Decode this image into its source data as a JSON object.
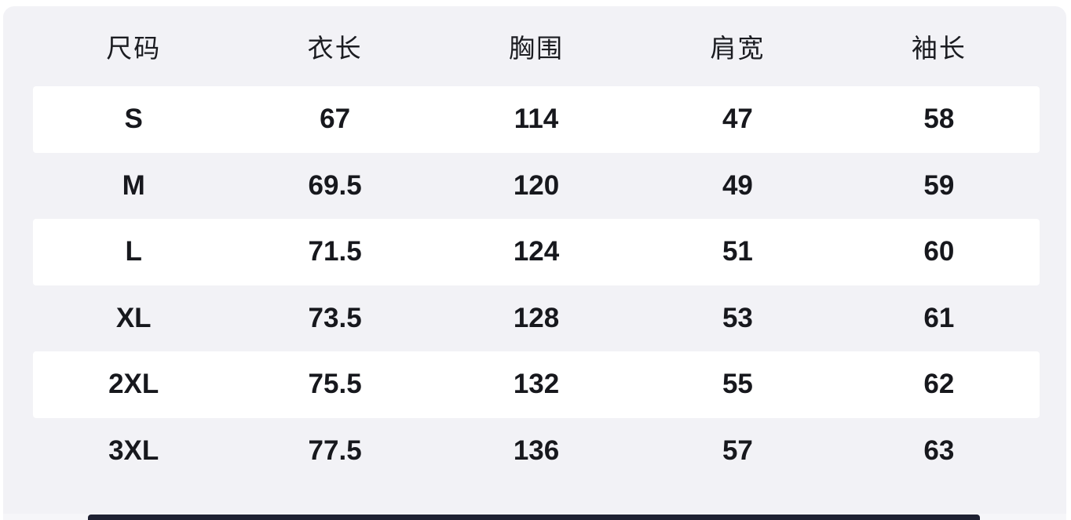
{
  "chart_data": {
    "type": "table",
    "columns": [
      "尺码",
      "衣长",
      "胸围",
      "肩宽",
      "袖长"
    ],
    "rows": [
      [
        "S",
        "67",
        "114",
        "47",
        "58"
      ],
      [
        "M",
        "69.5",
        "120",
        "49",
        "59"
      ],
      [
        "L",
        "71.5",
        "124",
        "51",
        "60"
      ],
      [
        "XL",
        "73.5",
        "128",
        "53",
        "61"
      ],
      [
        "2XL",
        "75.5",
        "132",
        "55",
        "62"
      ],
      [
        "3XL",
        "77.5",
        "136",
        "57",
        "63"
      ]
    ],
    "layout": {
      "banded_rows": [
        0,
        2,
        4
      ],
      "legend": "none",
      "grid": "off"
    }
  },
  "colors": {
    "page_bg": "#ffffff",
    "panel_bg": "#f2f2f6",
    "band_bg": "#ffffff",
    "text": "#17181d",
    "header_text": "#1b1c21",
    "bottom_bar": "#1e2132"
  }
}
